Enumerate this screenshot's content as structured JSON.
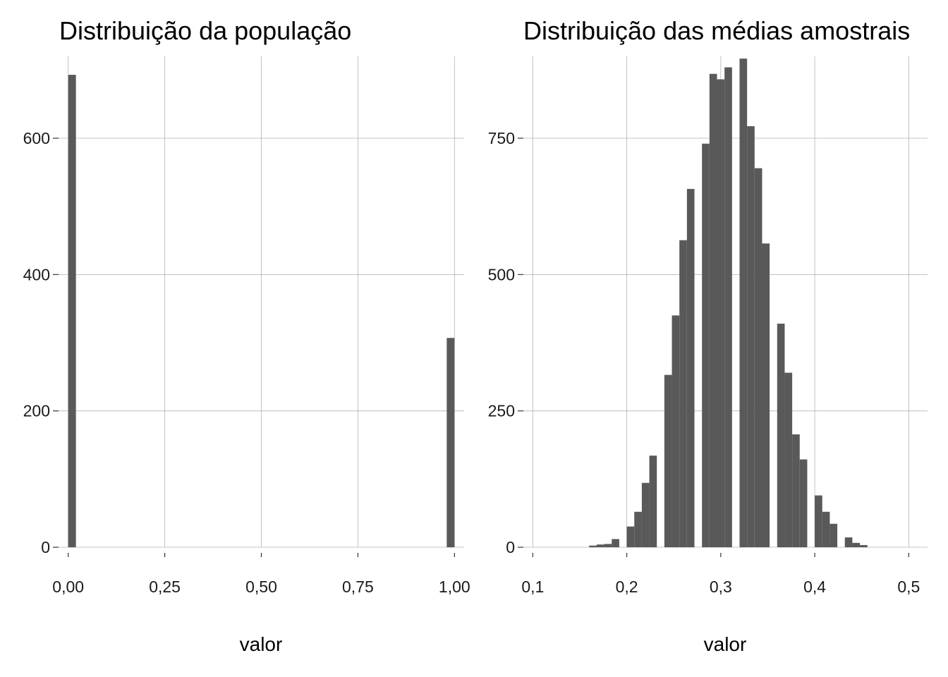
{
  "chart_data": [
    {
      "type": "bar",
      "title": "Distribuição da população",
      "xlabel": "valor",
      "ylabel": "",
      "xlim": [
        -0.025,
        1.025
      ],
      "ylim": [
        0,
        720
      ],
      "x_ticks": [
        0,
        0.25,
        0.5,
        0.75,
        1
      ],
      "x_tick_labels": [
        "0,00",
        "0,25",
        "0,50",
        "0,75",
        "1,00"
      ],
      "y_ticks": [
        0,
        200,
        400,
        600
      ],
      "y_tick_labels": [
        "0",
        "200",
        "400",
        "600"
      ],
      "grid": true,
      "bar_color": "#595959",
      "bars": [
        {
          "x0": 0.0,
          "x1": 0.02,
          "count": 693
        },
        {
          "x0": 0.98,
          "x1": 1.0,
          "count": 307
        }
      ]
    },
    {
      "type": "bar",
      "title": "Distribuição das médias amostrais",
      "xlabel": "valor",
      "ylabel": "",
      "xlim": [
        0.09,
        0.52
      ],
      "ylim": [
        0,
        900
      ],
      "x_ticks": [
        0.1,
        0.2,
        0.3,
        0.4,
        0.5
      ],
      "x_tick_labels": [
        "0,1",
        "0,2",
        "0,3",
        "0,4",
        "0,5"
      ],
      "y_ticks": [
        0,
        250,
        500,
        750
      ],
      "y_tick_labels": [
        "0",
        "250",
        "500",
        "750"
      ],
      "grid": true,
      "bar_color": "#595959",
      "bars": [
        {
          "x0": 0.16,
          "x1": 0.168,
          "count": 3
        },
        {
          "x0": 0.168,
          "x1": 0.176,
          "count": 5
        },
        {
          "x0": 0.176,
          "x1": 0.184,
          "count": 6
        },
        {
          "x0": 0.184,
          "x1": 0.192,
          "count": 15
        },
        {
          "x0": 0.2,
          "x1": 0.208,
          "count": 38
        },
        {
          "x0": 0.208,
          "x1": 0.216,
          "count": 65
        },
        {
          "x0": 0.216,
          "x1": 0.224,
          "count": 118
        },
        {
          "x0": 0.224,
          "x1": 0.232,
          "count": 168
        },
        {
          "x0": 0.24,
          "x1": 0.248,
          "count": 316
        },
        {
          "x0": 0.248,
          "x1": 0.256,
          "count": 425
        },
        {
          "x0": 0.256,
          "x1": 0.264,
          "count": 563
        },
        {
          "x0": 0.264,
          "x1": 0.272,
          "count": 657
        },
        {
          "x0": 0.28,
          "x1": 0.288,
          "count": 740
        },
        {
          "x0": 0.288,
          "x1": 0.296,
          "count": 868
        },
        {
          "x0": 0.296,
          "x1": 0.304,
          "count": 858
        },
        {
          "x0": 0.304,
          "x1": 0.312,
          "count": 880
        },
        {
          "x0": 0.32,
          "x1": 0.328,
          "count": 896
        },
        {
          "x0": 0.328,
          "x1": 0.336,
          "count": 772
        },
        {
          "x0": 0.336,
          "x1": 0.344,
          "count": 695
        },
        {
          "x0": 0.344,
          "x1": 0.352,
          "count": 557
        },
        {
          "x0": 0.36,
          "x1": 0.368,
          "count": 410
        },
        {
          "x0": 0.368,
          "x1": 0.376,
          "count": 320
        },
        {
          "x0": 0.376,
          "x1": 0.384,
          "count": 207
        },
        {
          "x0": 0.384,
          "x1": 0.392,
          "count": 161
        },
        {
          "x0": 0.4,
          "x1": 0.408,
          "count": 95
        },
        {
          "x0": 0.408,
          "x1": 0.416,
          "count": 65
        },
        {
          "x0": 0.416,
          "x1": 0.424,
          "count": 43
        },
        {
          "x0": 0.432,
          "x1": 0.44,
          "count": 18
        },
        {
          "x0": 0.44,
          "x1": 0.448,
          "count": 8
        },
        {
          "x0": 0.448,
          "x1": 0.456,
          "count": 4
        }
      ]
    }
  ]
}
